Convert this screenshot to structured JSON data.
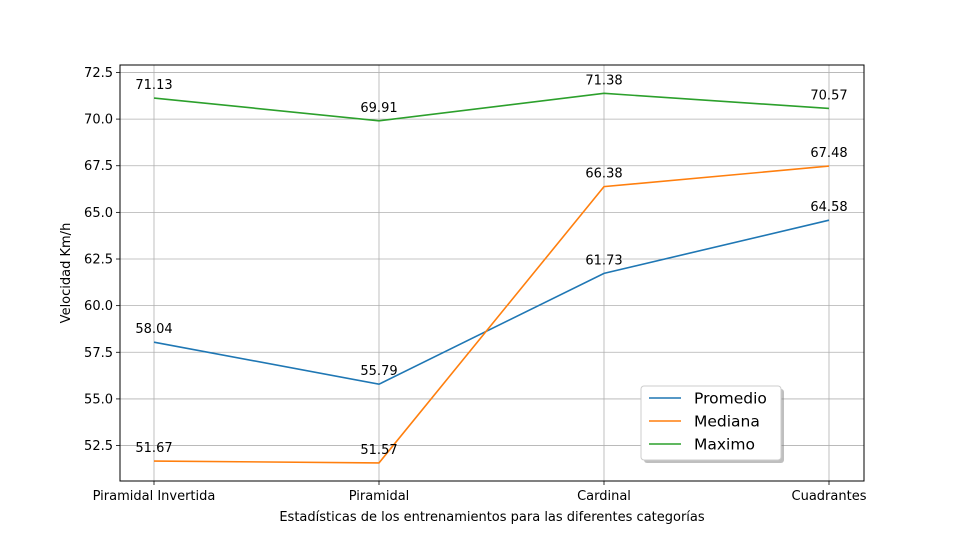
{
  "chart_data": {
    "type": "line",
    "title": "",
    "xlabel": "Estadísticas de los entrenamientos para las diferentes categorías",
    "ylabel": "Velocidad Km/h",
    "categories": [
      "Piramidal Invertida",
      "Piramidal",
      "Cardinal",
      "Cuadrantes"
    ],
    "ylim": [
      50.6,
      72.9
    ],
    "yticks": [
      "52.5",
      "55.0",
      "57.5",
      "60.0",
      "62.5",
      "65.0",
      "67.5",
      "70.0",
      "72.5"
    ],
    "grid": true,
    "legend_position": "lower-right",
    "series": [
      {
        "name": "Promedio",
        "color": "#1f77b4",
        "values": [
          58.04,
          55.79,
          61.73,
          64.58
        ],
        "labels": [
          "58.04",
          "55.79",
          "61.73",
          "64.58"
        ]
      },
      {
        "name": "Mediana",
        "color": "#ff7f0e",
        "values": [
          51.67,
          51.57,
          66.38,
          67.48
        ],
        "labels": [
          "51.67",
          "51.57",
          "66.38",
          "67.48"
        ]
      },
      {
        "name": "Maximo",
        "color": "#2ca02c",
        "values": [
          71.13,
          69.91,
          71.38,
          70.57
        ],
        "labels": [
          "71.13",
          "69.91",
          "71.38",
          "70.57"
        ]
      }
    ]
  }
}
